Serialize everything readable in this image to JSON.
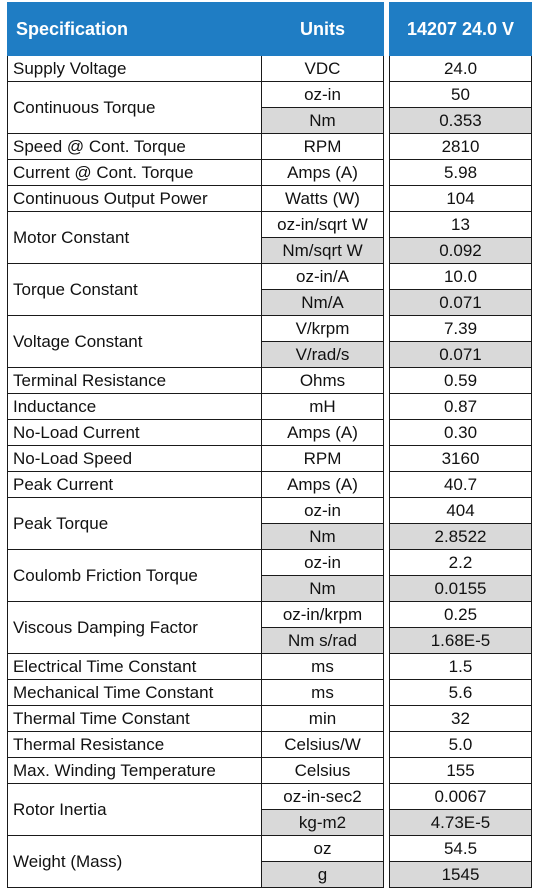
{
  "header": {
    "specification": "Specification",
    "units": "Units",
    "model": "14207 24.0 V"
  },
  "rows": [
    {
      "spec": "Supply Voltage",
      "units": [
        "VDC"
      ],
      "values": [
        "24.0"
      ]
    },
    {
      "spec": "Continuous Torque",
      "units": [
        "oz-in",
        "Nm"
      ],
      "values": [
        "50",
        "0.353"
      ]
    },
    {
      "spec": "Speed @ Cont. Torque",
      "units": [
        "RPM"
      ],
      "values": [
        "2810"
      ]
    },
    {
      "spec": "Current @ Cont. Torque",
      "units": [
        "Amps (A)"
      ],
      "values": [
        "5.98"
      ]
    },
    {
      "spec": "Continuous Output Power",
      "units": [
        "Watts (W)"
      ],
      "values": [
        "104"
      ]
    },
    {
      "spec": "Motor Constant",
      "units": [
        "oz-in/sqrt W",
        "Nm/sqrt W"
      ],
      "values": [
        "13",
        "0.092"
      ]
    },
    {
      "spec": "Torque Constant",
      "units": [
        "oz-in/A",
        "Nm/A"
      ],
      "values": [
        "10.0",
        "0.071"
      ]
    },
    {
      "spec": "Voltage Constant",
      "units": [
        "V/krpm",
        "V/rad/s"
      ],
      "values": [
        "7.39",
        "0.071"
      ]
    },
    {
      "spec": "Terminal Resistance",
      "units": [
        "Ohms"
      ],
      "values": [
        "0.59"
      ]
    },
    {
      "spec": "Inductance",
      "units": [
        "mH"
      ],
      "values": [
        "0.87"
      ]
    },
    {
      "spec": "No-Load Current",
      "units": [
        "Amps (A)"
      ],
      "values": [
        "0.30"
      ]
    },
    {
      "spec": "No-Load Speed",
      "units": [
        "RPM"
      ],
      "values": [
        "3160"
      ]
    },
    {
      "spec": "Peak Current",
      "units": [
        "Amps (A)"
      ],
      "values": [
        "40.7"
      ]
    },
    {
      "spec": "Peak Torque",
      "units": [
        "oz-in",
        "Nm"
      ],
      "values": [
        "404",
        "2.8522"
      ]
    },
    {
      "spec": "Coulomb Friction Torque",
      "units": [
        "oz-in",
        "Nm"
      ],
      "values": [
        "2.2",
        "0.0155"
      ]
    },
    {
      "spec": "Viscous Damping Factor",
      "units": [
        "oz-in/krpm",
        "Nm s/rad"
      ],
      "values": [
        "0.25",
        "1.68E-5"
      ]
    },
    {
      "spec": "Electrical Time Constant",
      "units": [
        "ms"
      ],
      "values": [
        "1.5"
      ]
    },
    {
      "spec": "Mechanical Time Constant",
      "units": [
        "ms"
      ],
      "values": [
        "5.6"
      ]
    },
    {
      "spec": "Thermal Time Constant",
      "units": [
        "min"
      ],
      "values": [
        "32"
      ]
    },
    {
      "spec": "Thermal Resistance",
      "units": [
        "Celsius/W"
      ],
      "values": [
        "5.0"
      ]
    },
    {
      "spec": "Max. Winding Temperature",
      "units": [
        "Celsius"
      ],
      "values": [
        "155"
      ]
    },
    {
      "spec": "Rotor Inertia",
      "units": [
        "oz-in-sec2",
        "kg-m2"
      ],
      "values": [
        "0.0067",
        "4.73E-5"
      ]
    },
    {
      "spec": "Weight (Mass)",
      "units": [
        "oz",
        "g"
      ],
      "values": [
        "54.5",
        "1545"
      ]
    }
  ],
  "colors": {
    "header_bg": "#1f7dc4",
    "header_text": "#ffffff",
    "shaded_row": "#d9d9d9",
    "border": "#1a1a1a"
  }
}
